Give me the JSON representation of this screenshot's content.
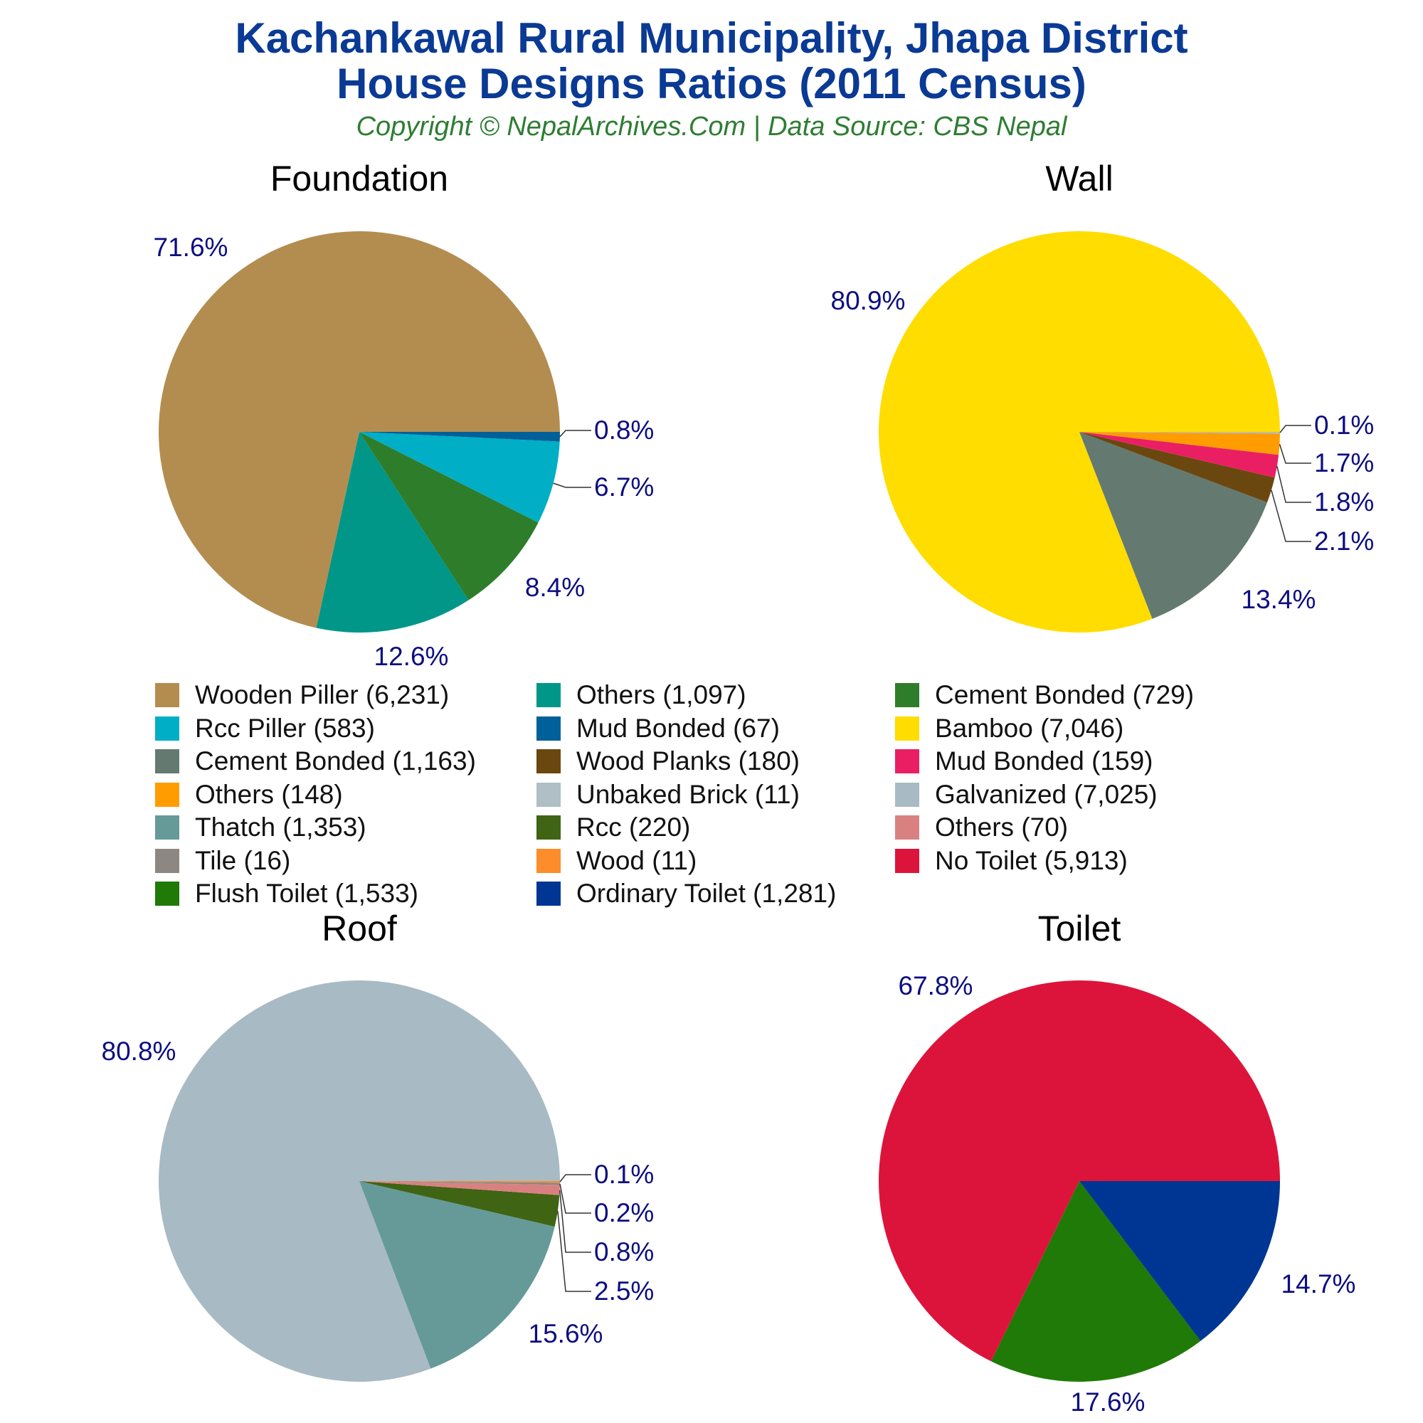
{
  "title_line1": "Kachankawal Rural Municipality, Jhapa District",
  "title_line2": "House Designs Ratios (2011 Census)",
  "subtitle": "Copyright © NepalArchives.Com | Data Source: CBS Nepal",
  "colors": {
    "title": "#0a3a94",
    "subtitle": "#2e7d32",
    "percent_label": "#0d0d80"
  },
  "chart_data": [
    {
      "type": "pie",
      "title": "Foundation",
      "slices": [
        {
          "label": "Wooden Piller",
          "value": 6231,
          "percent": "71.6%",
          "color": "#b38d50"
        },
        {
          "label": "Others",
          "value": 1097,
          "percent": "12.6%",
          "color": "#009688"
        },
        {
          "label": "Cement Bonded",
          "value": 729,
          "percent": "8.4%",
          "color": "#2e7d2a"
        },
        {
          "label": "Rcc Piller",
          "value": 583,
          "percent": "6.7%",
          "color": "#00aec6"
        },
        {
          "label": "Mud Bonded",
          "value": 67,
          "percent": "0.8%",
          "color": "#00609a"
        }
      ]
    },
    {
      "type": "pie",
      "title": "Wall",
      "slices": [
        {
          "label": "Bamboo",
          "value": 7046,
          "percent": "80.9%",
          "color": "#ffdd00"
        },
        {
          "label": "Cement Bonded",
          "value": 1163,
          "percent": "13.4%",
          "color": "#647a70"
        },
        {
          "label": "Wood Planks",
          "value": 180,
          "percent": "2.1%",
          "color": "#6b4710"
        },
        {
          "label": "Mud Bonded",
          "value": 159,
          "percent": "1.8%",
          "color": "#ea1f63"
        },
        {
          "label": "Others",
          "value": 148,
          "percent": "1.7%",
          "color": "#ff9c00"
        },
        {
          "label": "Unbaked Brick",
          "value": 11,
          "percent": "0.1%",
          "color": "#b0bec5"
        }
      ]
    },
    {
      "type": "pie",
      "title": "Roof",
      "slices": [
        {
          "label": "Galvanized",
          "value": 7025,
          "percent": "80.8%",
          "color": "#a8bac3"
        },
        {
          "label": "Thatch",
          "value": 1353,
          "percent": "15.6%",
          "color": "#659a98"
        },
        {
          "label": "Rcc",
          "value": 220,
          "percent": "2.5%",
          "color": "#3e6414"
        },
        {
          "label": "Others",
          "value": 70,
          "percent": "0.8%",
          "color": "#d98181"
        },
        {
          "label": "Tile",
          "value": 16,
          "percent": "0.2%",
          "color": "#8d8784"
        },
        {
          "label": "Wood",
          "value": 11,
          "percent": "0.1%",
          "color": "#fd8c2a"
        }
      ]
    },
    {
      "type": "pie",
      "title": "Toilet",
      "slices": [
        {
          "label": "No Toilet",
          "value": 5913,
          "percent": "67.8%",
          "color": "#dc143c"
        },
        {
          "label": "Flush Toilet",
          "value": 1533,
          "percent": "17.6%",
          "color": "#1f7a07"
        },
        {
          "label": "Ordinary Toilet",
          "value": 1281,
          "percent": "14.7%",
          "color": "#003693"
        }
      ]
    }
  ],
  "legend": [
    {
      "label": "Wooden Piller (6,231)",
      "color": "#b38d50"
    },
    {
      "label": "Others (1,097)",
      "color": "#009688"
    },
    {
      "label": "Cement Bonded (729)",
      "color": "#2e7d2a"
    },
    {
      "label": "Rcc Piller (583)",
      "color": "#00aec6"
    },
    {
      "label": "Mud Bonded (67)",
      "color": "#00609a"
    },
    {
      "label": "Bamboo (7,046)",
      "color": "#ffdd00"
    },
    {
      "label": "Cement Bonded (1,163)",
      "color": "#647a70"
    },
    {
      "label": "Wood Planks (180)",
      "color": "#6b4710"
    },
    {
      "label": "Mud Bonded (159)",
      "color": "#ea1f63"
    },
    {
      "label": "Others (148)",
      "color": "#ff9c00"
    },
    {
      "label": "Unbaked Brick (11)",
      "color": "#b0bec5"
    },
    {
      "label": "Galvanized (7,025)",
      "color": "#a8bac3"
    },
    {
      "label": "Thatch (1,353)",
      "color": "#659a98"
    },
    {
      "label": "Rcc (220)",
      "color": "#3e6414"
    },
    {
      "label": "Others (70)",
      "color": "#d98181"
    },
    {
      "label": "Tile (16)",
      "color": "#8d8784"
    },
    {
      "label": "Wood (11)",
      "color": "#fd8c2a"
    },
    {
      "label": "No Toilet (5,913)",
      "color": "#dc143c"
    },
    {
      "label": "Flush Toilet (1,533)",
      "color": "#1f7a07"
    },
    {
      "label": "Ordinary Toilet (1,281)",
      "color": "#003693"
    }
  ]
}
